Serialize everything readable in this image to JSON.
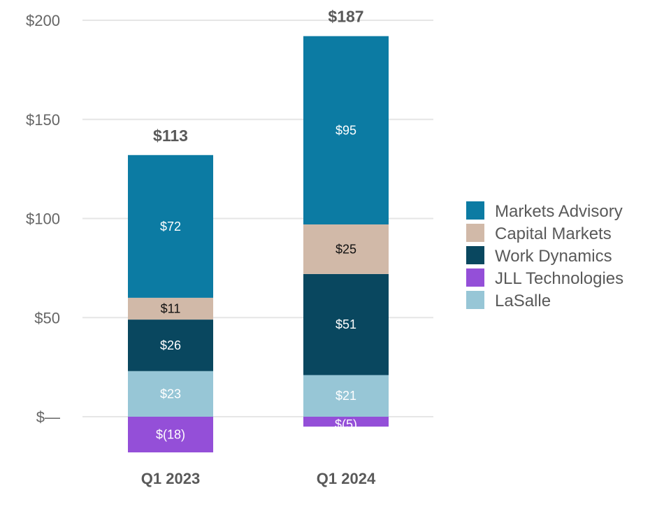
{
  "chart_data": {
    "type": "bar",
    "stacked": true,
    "categories": [
      "Q1 2023",
      "Q1 2024"
    ],
    "series": [
      {
        "name": "LaSalle",
        "values": [
          23,
          21
        ],
        "labels": [
          "$23",
          "$21"
        ],
        "color": "#97c6d6",
        "label_color": "#ffffff"
      },
      {
        "name": "Work Dynamics",
        "values": [
          26,
          51
        ],
        "labels": [
          "$26",
          "$51"
        ],
        "color": "#09475f",
        "label_color": "#ffffff"
      },
      {
        "name": "Capital Markets",
        "values": [
          11,
          25
        ],
        "labels": [
          "$11",
          "$25"
        ],
        "color": "#d1b9a8",
        "label_color": "#111111"
      },
      {
        "name": "Markets Advisory",
        "values": [
          72,
          95
        ],
        "labels": [
          "$72",
          "$95"
        ],
        "color": "#0c7ba3",
        "label_color": "#ffffff"
      },
      {
        "name": "JLL Technologies",
        "values": [
          -18,
          -5
        ],
        "labels": [
          "$(18)",
          "$(5)"
        ],
        "color": "#944fd8",
        "label_color": "#ffffff"
      }
    ],
    "totals": [
      "$113",
      "$187"
    ],
    "legend_order": [
      "Markets Advisory",
      "Capital Markets",
      "Work Dynamics",
      "JLL Technologies",
      "LaSalle"
    ],
    "yticks": [
      0,
      50,
      100,
      150,
      200
    ],
    "ytick_labels": [
      "$—",
      "$50",
      "$100",
      "$150",
      "$200"
    ],
    "ylim": [
      -20,
      200
    ],
    "grid": true,
    "legend_position": "right",
    "gridline_color": "#e6e6e6"
  }
}
